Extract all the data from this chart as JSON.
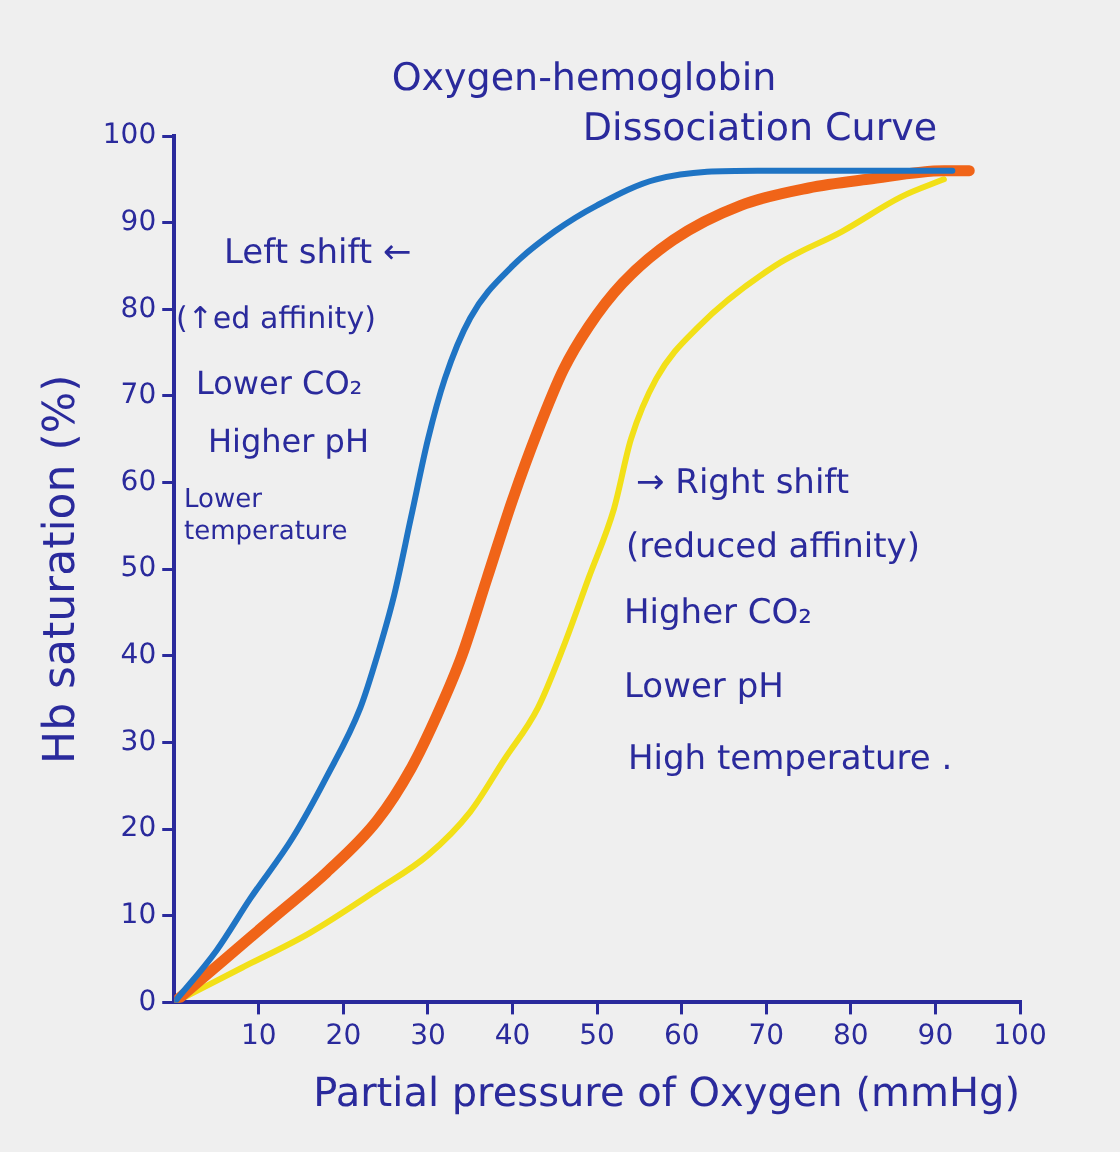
{
  "chart_data": {
    "type": "line",
    "title": "Oxygen-hemoglobin Dissociation Curve",
    "xlabel": "Partial pressure of Oxygen (mmHg)",
    "ylabel": "Hb saturation (%)",
    "xlim": [
      0,
      100
    ],
    "ylim": [
      0,
      100
    ],
    "xticks": [
      10,
      20,
      30,
      40,
      50,
      60,
      70,
      80,
      90,
      100
    ],
    "yticks": [
      0,
      10,
      20,
      30,
      40,
      50,
      60,
      70,
      80,
      90,
      100
    ],
    "grid": false,
    "legend": false,
    "marker": "none",
    "series": [
      {
        "color": "#1f74c4",
        "x": [
          0,
          5,
          9,
          14,
          18,
          22,
          24,
          26,
          28,
          30,
          32,
          35,
          40,
          45,
          50,
          57,
          69,
          81,
          92
        ],
        "values": [
          0,
          6,
          12,
          19,
          26,
          34,
          40,
          47,
          56,
          65,
          72,
          79,
          85,
          89,
          92,
          95,
          96,
          96,
          96
        ]
      },
      {
        "color": "#f06418",
        "x": [
          0,
          6,
          12,
          18,
          24,
          28,
          31,
          34,
          37,
          40,
          43,
          46,
          49,
          53,
          59,
          67,
          75,
          82,
          91,
          94
        ],
        "values": [
          0,
          5,
          10,
          15,
          21,
          27,
          33,
          40,
          49,
          58,
          66,
          73,
          78,
          83,
          88,
          92,
          94,
          95,
          96,
          96
        ]
      },
      {
        "color": "#f2e018",
        "x": [
          0,
          8,
          16,
          24,
          30,
          35,
          39,
          43,
          46,
          49,
          52,
          54,
          57,
          62,
          71,
          79,
          86,
          91
        ],
        "values": [
          0,
          4,
          8,
          13,
          17,
          22,
          28,
          34,
          41,
          49,
          57,
          65,
          72,
          78,
          85,
          89,
          93,
          95
        ]
      }
    ],
    "annotations": [
      "Left shift ←",
      "(↑ed affinity)",
      "Lower CO₂",
      "Higher pH",
      "Lower temperature",
      "→ Right shift",
      "(reduced affinity)",
      "Higher CO₂",
      "Lower pH",
      "High temperature ."
    ]
  }
}
